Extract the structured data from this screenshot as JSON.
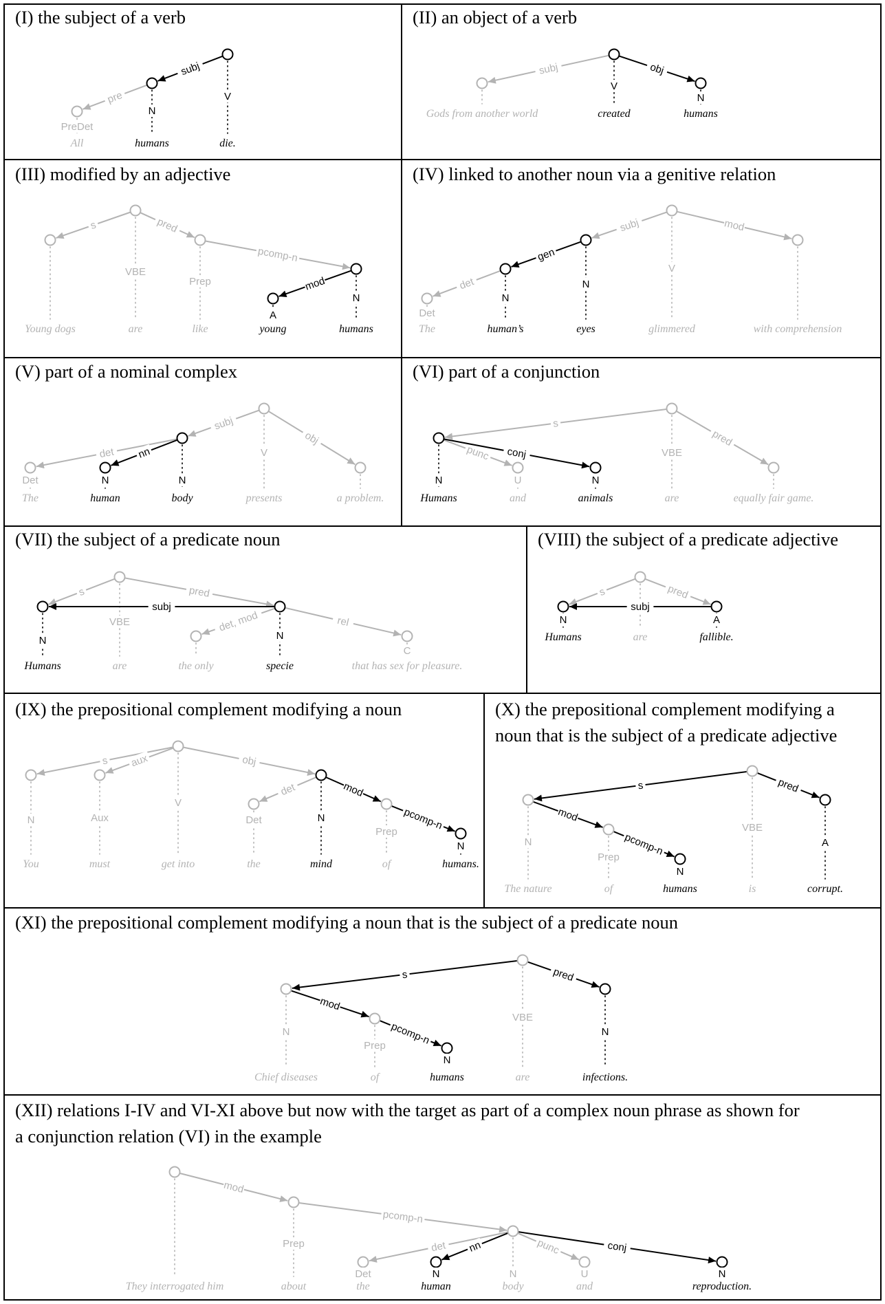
{
  "panels": [
    {
      "title": "(I) the subject of a verb",
      "tokens": [
        {
          "text": "All",
          "pos": "PreDet",
          "hl": false
        },
        {
          "text": "humans",
          "pos": "N",
          "hl": true
        },
        {
          "text": "die.",
          "pos": "V",
          "hl": true
        }
      ],
      "edges": [
        {
          "from": 2,
          "to": 1,
          "label": "subj",
          "hl": true
        },
        {
          "from": 1,
          "to": 0,
          "label": "pre",
          "hl": false
        }
      ]
    },
    {
      "title": "(II) an object of a verb",
      "tokens": [
        {
          "text": "Gods from another world",
          "pos": "",
          "hl": false
        },
        {
          "text": "created",
          "pos": "V",
          "hl": true
        },
        {
          "text": "humans",
          "pos": "N",
          "hl": true
        }
      ],
      "edges": [
        {
          "from": 1,
          "to": 0,
          "label": "subj",
          "hl": false
        },
        {
          "from": 1,
          "to": 2,
          "label": "obj",
          "hl": true
        }
      ]
    },
    {
      "title": "(III) modified by an adjective",
      "tokens": [
        {
          "text": "Young dogs",
          "pos": "",
          "hl": false
        },
        {
          "text": "are",
          "pos": "VBE",
          "hl": false
        },
        {
          "text": "like",
          "pos": "Prep",
          "hl": false
        },
        {
          "text": "young",
          "pos": "A",
          "hl": true
        },
        {
          "text": "humans",
          "pos": "N",
          "hl": true
        }
      ],
      "edges": [
        {
          "from": 1,
          "to": 0,
          "label": "s",
          "hl": false
        },
        {
          "from": 1,
          "to": 2,
          "label": "pred",
          "hl": false
        },
        {
          "from": 2,
          "to": 4,
          "label": "pcomp-n",
          "hl": false
        },
        {
          "from": 4,
          "to": 3,
          "label": "mod",
          "hl": true
        }
      ]
    },
    {
      "title": "(IV) linked to another noun via a genitive relation",
      "tokens": [
        {
          "text": "The",
          "pos": "Det",
          "hl": false
        },
        {
          "text": "human’s",
          "pos": "N",
          "hl": true
        },
        {
          "text": "eyes",
          "pos": "N",
          "hl": true
        },
        {
          "text": "glimmered",
          "pos": "V",
          "hl": false
        },
        {
          "text": "with comprehension",
          "pos": "",
          "hl": false
        }
      ],
      "edges": [
        {
          "from": 3,
          "to": 2,
          "label": "subj",
          "hl": false
        },
        {
          "from": 3,
          "to": 4,
          "label": "mod",
          "hl": false
        },
        {
          "from": 2,
          "to": 1,
          "label": "gen",
          "hl": true
        },
        {
          "from": 1,
          "to": 0,
          "label": "det",
          "hl": false
        }
      ]
    },
    {
      "title": "(V) part of a nominal complex",
      "tokens": [
        {
          "text": "The",
          "pos": "Det",
          "hl": false
        },
        {
          "text": "human",
          "pos": "N",
          "hl": true
        },
        {
          "text": "body",
          "pos": "N",
          "hl": true
        },
        {
          "text": "presents",
          "pos": "V",
          "hl": false
        },
        {
          "text": "a problem.",
          "pos": "",
          "hl": false
        }
      ],
      "edges": [
        {
          "from": 3,
          "to": 2,
          "label": "subj",
          "hl": false
        },
        {
          "from": 3,
          "to": 4,
          "label": "obj",
          "hl": false
        },
        {
          "from": 2,
          "to": 0,
          "label": "det",
          "hl": false
        },
        {
          "from": 2,
          "to": 1,
          "label": "nn",
          "hl": true
        }
      ]
    },
    {
      "title": "(VI) part of a conjunction",
      "tokens": [
        {
          "text": "Humans",
          "pos": "N",
          "hl": true
        },
        {
          "text": "and",
          "pos": "U",
          "hl": false
        },
        {
          "text": "animals",
          "pos": "N",
          "hl": true
        },
        {
          "text": "are",
          "pos": "VBE",
          "hl": false
        },
        {
          "text": "equally fair game.",
          "pos": "",
          "hl": false
        }
      ],
      "edges": [
        {
          "from": 3,
          "to": 0,
          "label": "s",
          "hl": false
        },
        {
          "from": 3,
          "to": 4,
          "label": "pred",
          "hl": false
        },
        {
          "from": 0,
          "to": 1,
          "label": "punc",
          "hl": false
        },
        {
          "from": 0,
          "to": 2,
          "label": "conj",
          "hl": true
        }
      ]
    },
    {
      "title": "(VII) the subject of a predicate noun",
      "tokens": [
        {
          "text": "Humans",
          "pos": "N",
          "hl": true
        },
        {
          "text": "are",
          "pos": "VBE",
          "hl": false
        },
        {
          "text": "the only",
          "pos": "",
          "hl": false
        },
        {
          "text": "specie",
          "pos": "N",
          "hl": true
        },
        {
          "text": "that has sex for pleasure.",
          "pos": "C",
          "hl": false
        }
      ],
      "edges": [
        {
          "from": 1,
          "to": 0,
          "label": "s",
          "hl": false
        },
        {
          "from": 1,
          "to": 3,
          "label": "pred",
          "hl": false
        },
        {
          "from": 3,
          "to": 0,
          "label": "subj",
          "hl": true
        },
        {
          "from": 3,
          "to": 2,
          "label": "det, mod",
          "hl": false
        },
        {
          "from": 3,
          "to": 4,
          "label": "rel",
          "hl": false
        }
      ]
    },
    {
      "title": "(VIII) the subject of a predicate adjective",
      "tokens": [
        {
          "text": "Humans",
          "pos": "N",
          "hl": true
        },
        {
          "text": "are",
          "pos": "",
          "hl": false
        },
        {
          "text": "fallible.",
          "pos": "A",
          "hl": true
        }
      ],
      "edges": [
        {
          "from": 1,
          "to": 0,
          "label": "s",
          "hl": false
        },
        {
          "from": 1,
          "to": 2,
          "label": "pred",
          "hl": false
        },
        {
          "from": 2,
          "to": 0,
          "label": "subj",
          "hl": true
        }
      ]
    },
    {
      "title": "(IX) the prepositional complement modifying a noun",
      "tokens": [
        {
          "text": "You",
          "pos": "N",
          "hl": false
        },
        {
          "text": "must",
          "pos": "Aux",
          "hl": false
        },
        {
          "text": "get into",
          "pos": "V",
          "hl": false
        },
        {
          "text": "the",
          "pos": "Det",
          "hl": false
        },
        {
          "text": "mind",
          "pos": "N",
          "hl": true
        },
        {
          "text": "of",
          "pos": "Prep",
          "hl": false
        },
        {
          "text": "humans.",
          "pos": "N",
          "hl": true
        }
      ],
      "edges": [
        {
          "from": 2,
          "to": 0,
          "label": "s",
          "hl": false
        },
        {
          "from": 2,
          "to": 1,
          "label": "aux",
          "hl": false
        },
        {
          "from": 2,
          "to": 4,
          "label": "obj",
          "hl": false
        },
        {
          "from": 4,
          "to": 3,
          "label": "det",
          "hl": false
        },
        {
          "from": 4,
          "to": 5,
          "label": "mod",
          "hl": true
        },
        {
          "from": 5,
          "to": 6,
          "label": "pcomp-n",
          "hl": true
        }
      ]
    },
    {
      "title": "(X) the prepositional complement modifying a noun that is the subject of a predicate adjective",
      "tokens": [
        {
          "text": "The nature",
          "pos": "N",
          "hl": false
        },
        {
          "text": "of",
          "pos": "Prep",
          "hl": false
        },
        {
          "text": "humans",
          "pos": "N",
          "hl": true
        },
        {
          "text": "is",
          "pos": "VBE",
          "hl": false
        },
        {
          "text": "corrupt.",
          "pos": "A",
          "hl": true
        }
      ],
      "edges": [
        {
          "from": 3,
          "to": 0,
          "label": "s",
          "hl": true
        },
        {
          "from": 3,
          "to": 4,
          "label": "pred",
          "hl": true
        },
        {
          "from": 0,
          "to": 1,
          "label": "mod",
          "hl": true
        },
        {
          "from": 1,
          "to": 2,
          "label": "pcomp-n",
          "hl": true
        }
      ]
    },
    {
      "title": "(XI) the prepositional complement modifying a noun that is the subject of a predicate noun",
      "tokens": [
        {
          "text": "Chief diseases",
          "pos": "N",
          "hl": false
        },
        {
          "text": "of",
          "pos": "Prep",
          "hl": false
        },
        {
          "text": "humans",
          "pos": "N",
          "hl": true
        },
        {
          "text": "are",
          "pos": "VBE",
          "hl": false
        },
        {
          "text": "infections.",
          "pos": "N",
          "hl": true
        }
      ],
      "edges": [
        {
          "from": 3,
          "to": 0,
          "label": "s",
          "hl": true
        },
        {
          "from": 3,
          "to": 4,
          "label": "pred",
          "hl": true
        },
        {
          "from": 0,
          "to": 1,
          "label": "mod",
          "hl": true
        },
        {
          "from": 1,
          "to": 2,
          "label": "pcomp-n",
          "hl": true
        }
      ]
    },
    {
      "title": "(XII) relations I-IV and VI-XI above but now with the target as part of a complex noun phrase as shown for a conjunction relation (VI) in the example",
      "tokens": [
        {
          "text": "They interrogated him",
          "pos": "",
          "hl": false
        },
        {
          "text": "about",
          "pos": "Prep",
          "hl": false
        },
        {
          "text": "the",
          "pos": "Det",
          "hl": false
        },
        {
          "text": "human",
          "pos": "N",
          "hl": true
        },
        {
          "text": "body",
          "pos": "N",
          "hl": false
        },
        {
          "text": "and",
          "pos": "U",
          "hl": false
        },
        {
          "text": "reproduction.",
          "pos": "N",
          "hl": true
        }
      ],
      "edges": [
        {
          "from": 0,
          "to": 1,
          "label": "mod",
          "hl": false
        },
        {
          "from": 1,
          "to": 4,
          "label": "pcomp-n",
          "hl": false
        },
        {
          "from": 4,
          "to": 2,
          "label": "det",
          "hl": false
        },
        {
          "from": 4,
          "to": 3,
          "label": "nn",
          "hl": true
        },
        {
          "from": 4,
          "to": 5,
          "label": "punc",
          "hl": false
        },
        {
          "from": 4,
          "to": 6,
          "label": "conj",
          "hl": true
        }
      ]
    }
  ],
  "colors": {
    "highlight": "#000000",
    "faded": "#b3b3b3"
  }
}
